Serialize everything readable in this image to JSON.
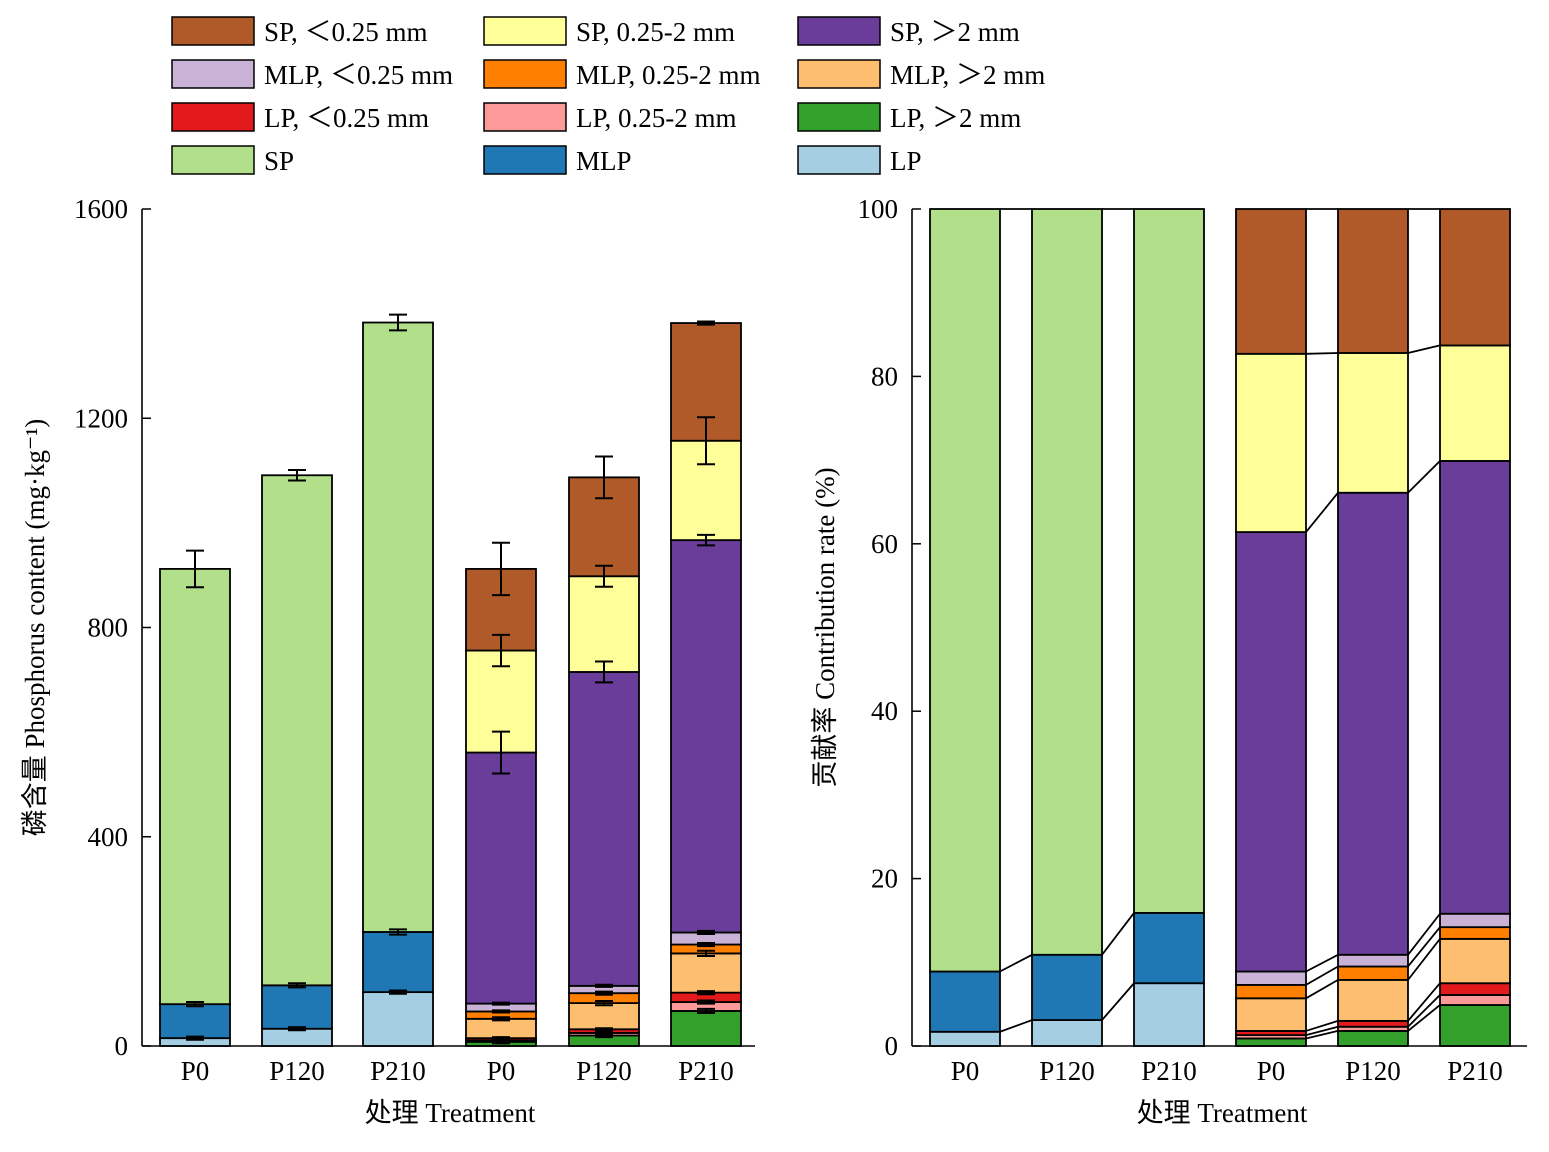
{
  "legend": [
    {
      "key": "SP_lt025",
      "label": "SP, ＜0.25 mm",
      "color": "#b05a2a"
    },
    {
      "key": "SP_mid",
      "label": "SP, 0.25-2 mm",
      "color": "#ffff99"
    },
    {
      "key": "SP_gt2",
      "label": "SP, ＞2 mm",
      "color": "#6a3d9a"
    },
    {
      "key": "MLP_lt025",
      "label": "MLP, ＜0.25 mm",
      "color": "#cab2d6"
    },
    {
      "key": "MLP_mid",
      "label": "MLP, 0.25-2 mm",
      "color": "#ff7f00"
    },
    {
      "key": "MLP_gt2",
      "label": "MLP, ＞2 mm",
      "color": "#fdbf6f"
    },
    {
      "key": "LP_lt025",
      "label": "LP, ＜0.25 mm",
      "color": "#e31a1c"
    },
    {
      "key": "LP_mid",
      "label": "LP, 0.25-2 mm",
      "color": "#fb9a99"
    },
    {
      "key": "LP_gt2",
      "label": "LP, ＞2 mm",
      "color": "#33a02c"
    },
    {
      "key": "SP",
      "label": "SP",
      "color": "#b2df8a"
    },
    {
      "key": "MLP",
      "label": "MLP",
      "color": "#1f78b4"
    },
    {
      "key": "LP",
      "label": "LP",
      "color": "#a6cee3"
    }
  ],
  "chart_data": [
    {
      "type": "bar",
      "stacked": true,
      "title": "",
      "xlabel": "处理 Treatment",
      "ylabel": "磷含量 Phosphorus content (mg·kg⁻¹)",
      "ylim": [
        0,
        1600
      ],
      "yticks": [
        0,
        400,
        800,
        1200,
        1600
      ],
      "categories": [
        "P0",
        "P120",
        "P210",
        "P0",
        "P120",
        "P210"
      ],
      "groups": [
        {
          "categories": [
            "P0",
            "P120",
            "P210"
          ],
          "series": [
            {
              "key": "LP",
              "values": [
                15,
                33,
                103
              ],
              "errors": [
                3,
                3,
                3
              ]
            },
            {
              "key": "MLP",
              "values": [
                65,
                83,
                115
              ],
              "errors": [
                4,
                4,
                5
              ]
            },
            {
              "key": "SP",
              "values": [
                832,
                975,
                1165
              ],
              "errors": [
                35,
                10,
                15
              ]
            }
          ]
        },
        {
          "categories": [
            "P0",
            "P120",
            "P210"
          ],
          "series": [
            {
              "key": "LP_gt2",
              "values": [
                8,
                20,
                67
              ],
              "errors": [
                3,
                3,
                4
              ]
            },
            {
              "key": "LP_mid",
              "values": [
                3,
                5,
                17
              ],
              "errors": [
                2,
                2,
                3
              ]
            },
            {
              "key": "LP_lt025",
              "values": [
                4,
                7,
                18
              ],
              "errors": [
                2,
                2,
                3
              ]
            },
            {
              "key": "MLP_gt2",
              "values": [
                37,
                50,
                75
              ],
              "errors": [
                3,
                4,
                5
              ]
            },
            {
              "key": "MLP_mid",
              "values": [
                14,
                19,
                17
              ],
              "errors": [
                2,
                3,
                3
              ]
            },
            {
              "key": "MLP_lt025",
              "values": [
                15,
                14,
                23
              ],
              "errors": [
                2,
                2,
                3
              ]
            },
            {
              "key": "SP_gt2",
              "values": [
                480,
                600,
                750
              ],
              "errors": [
                40,
                20,
                10
              ]
            },
            {
              "key": "SP_mid",
              "values": [
                195,
                183,
                190
              ],
              "errors": [
                30,
                20,
                45
              ]
            },
            {
              "key": "SP_lt025",
              "values": [
                156,
                189,
                225
              ],
              "errors": [
                50,
                40,
                3
              ]
            }
          ]
        }
      ]
    },
    {
      "type": "bar",
      "stacked": true,
      "percent": true,
      "title": "",
      "xlabel": "处理 Treatment",
      "ylabel": "贡献率 Contribution rate (%)",
      "ylim": [
        0,
        100
      ],
      "yticks": [
        0,
        20,
        40,
        60,
        80,
        100
      ],
      "categories": [
        "P0",
        "P120",
        "P210",
        "P0",
        "P120",
        "P210"
      ],
      "groups": [
        {
          "categories": [
            "P0",
            "P120",
            "P210"
          ],
          "series": [
            {
              "key": "LP",
              "values": [
                1.7,
                3.1,
                7.5
              ]
            },
            {
              "key": "MLP",
              "values": [
                7.2,
                7.8,
                8.4
              ]
            },
            {
              "key": "SP",
              "values": [
                91.1,
                89.1,
                84.1
              ]
            }
          ]
        },
        {
          "categories": [
            "P0",
            "P120",
            "P210"
          ],
          "series": [
            {
              "key": "LP_gt2",
              "values": [
                0.9,
                1.8,
                4.9
              ]
            },
            {
              "key": "LP_mid",
              "values": [
                0.4,
                0.5,
                1.2
              ]
            },
            {
              "key": "LP_lt025",
              "values": [
                0.5,
                0.7,
                1.4
              ]
            },
            {
              "key": "MLP_gt2",
              "values": [
                3.9,
                4.9,
                5.3
              ]
            },
            {
              "key": "MLP_mid",
              "values": [
                1.6,
                1.6,
                1.4
              ]
            },
            {
              "key": "MLP_lt025",
              "values": [
                1.6,
                1.4,
                1.6
              ]
            },
            {
              "key": "SP_gt2",
              "values": [
                52.5,
                55.2,
                54.1
              ]
            },
            {
              "key": "SP_mid",
              "values": [
                21.3,
                16.7,
                13.8
              ]
            },
            {
              "key": "SP_lt025",
              "values": [
                17.3,
                17.2,
                16.3
              ]
            }
          ]
        }
      ]
    }
  ]
}
